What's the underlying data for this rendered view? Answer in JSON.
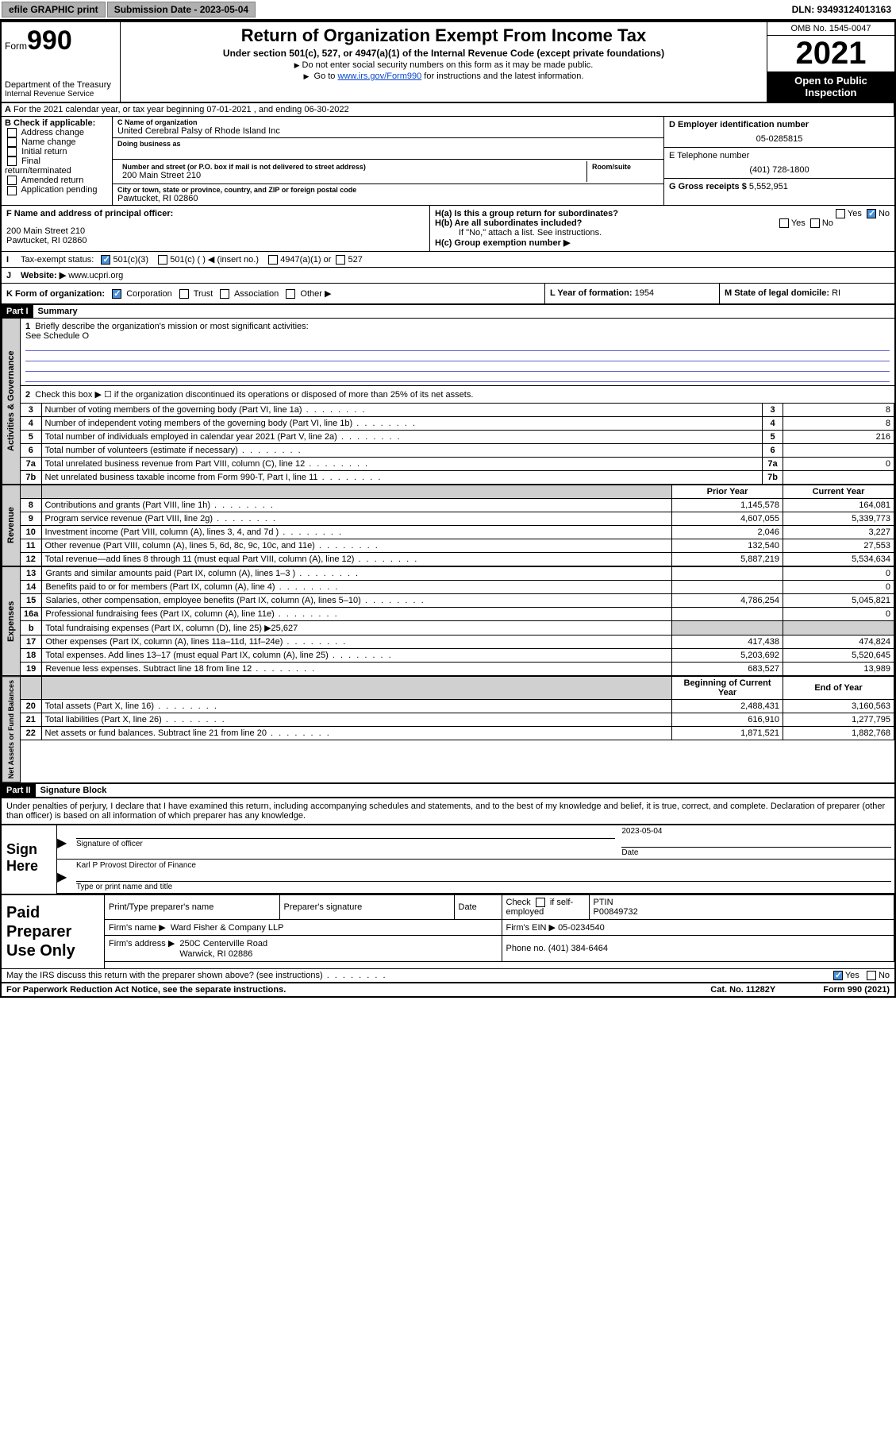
{
  "topbar": {
    "btn_efile": "efile GRAPHIC print",
    "submission_label": "Submission Date - 2023-05-04",
    "dln": "DLN: 93493124013163"
  },
  "header": {
    "form_word": "Form",
    "form_no": "990",
    "dept": "Department of the Treasury",
    "irs": "Internal Revenue Service",
    "title": "Return of Organization Exempt From Income Tax",
    "sub": "Under section 501(c), 527, or 4947(a)(1) of the Internal Revenue Code (except private foundations)",
    "note1": "Do not enter social security numbers on this form as it may be made public.",
    "note2_pre": "Go to ",
    "note2_link": "www.irs.gov/Form990",
    "note2_post": " for instructions and the latest information.",
    "omb": "OMB No. 1545-0047",
    "year": "2021",
    "inspect": "Open to Public Inspection"
  },
  "rowA": "For the 2021 calendar year, or tax year beginning 07-01-2021   , and ending 06-30-2022",
  "colB": {
    "title": "B Check if applicable:",
    "opts": [
      "Address change",
      "Name change",
      "Initial return",
      "Final return/terminated",
      "Amended return",
      "Application pending"
    ]
  },
  "C": {
    "name_lbl": "C Name of organization",
    "name": "United Cerebral Palsy of Rhode Island Inc",
    "dba_lbl": "Doing business as",
    "addr_lbl": "Number and street (or P.O. box if mail is not delivered to street address)",
    "addr": "200 Main Street 210",
    "room_lbl": "Room/suite",
    "city_lbl": "City or town, state or province, country, and ZIP or foreign postal code",
    "city": "Pawtucket, RI  02860"
  },
  "D": {
    "lbl": "D Employer identification number",
    "val": "05-0285815"
  },
  "E": {
    "lbl": "E Telephone number",
    "val": "(401) 728-1800"
  },
  "G": {
    "lbl": "G Gross receipts $",
    "val": "5,552,951"
  },
  "F": {
    "lbl": "F  Name and address of principal officer:",
    "addr1": "200 Main Street 210",
    "addr2": "Pawtucket, RI  02860"
  },
  "H": {
    "a_lbl": "H(a)  Is this a group return for subordinates?",
    "b_lbl": "H(b)  Are all subordinates included?",
    "note": "If \"No,\" attach a list. See instructions.",
    "c_lbl": "H(c)  Group exemption number ▶",
    "yes": "Yes",
    "no": "No"
  },
  "I": {
    "lbl": "Tax-exempt status:",
    "o1": "501(c)(3)",
    "o2": "501(c) (  ) ◀ (insert no.)",
    "o3": "4947(a)(1) or",
    "o4": "527"
  },
  "J": {
    "lbl": "Website: ▶",
    "val": "www.ucpri.org"
  },
  "K": {
    "lbl": "K Form of organization:",
    "o1": "Corporation",
    "o2": "Trust",
    "o3": "Association",
    "o4": "Other ▶"
  },
  "L": {
    "lbl": "L Year of formation:",
    "val": "1954"
  },
  "M": {
    "lbl": "M State of legal domicile:",
    "val": "RI"
  },
  "partI": {
    "hdr": "Part I",
    "title": "Summary"
  },
  "summary1": {
    "lbl": "Briefly describe the organization's mission or most significant activities:",
    "val": "See Schedule O"
  },
  "summary2": "Check this box ▶ ☐  if the organization discontinued its operations or disposed of more than 25% of its net assets.",
  "gov_rows": [
    {
      "n": "3",
      "t": "Number of voting members of the governing body (Part VI, line 1a)",
      "v": "8"
    },
    {
      "n": "4",
      "t": "Number of independent voting members of the governing body (Part VI, line 1b)",
      "v": "8"
    },
    {
      "n": "5",
      "t": "Total number of individuals employed in calendar year 2021 (Part V, line 2a)",
      "v": "216"
    },
    {
      "n": "6",
      "t": "Total number of volunteers (estimate if necessary)",
      "v": ""
    },
    {
      "n": "7a",
      "t": "Total unrelated business revenue from Part VIII, column (C), line 12",
      "v": "0"
    },
    {
      "n": "7b",
      "t": "Net unrelated business taxable income from Form 990-T, Part I, line 11",
      "v": ""
    }
  ],
  "col_hdr": {
    "prior": "Prior Year",
    "current": "Current Year",
    "beg": "Beginning of Current Year",
    "end": "End of Year"
  },
  "rev_rows": [
    {
      "n": "8",
      "t": "Contributions and grants (Part VIII, line 1h)",
      "p": "1,145,578",
      "c": "164,081"
    },
    {
      "n": "9",
      "t": "Program service revenue (Part VIII, line 2g)",
      "p": "4,607,055",
      "c": "5,339,773"
    },
    {
      "n": "10",
      "t": "Investment income (Part VIII, column (A), lines 3, 4, and 7d )",
      "p": "2,046",
      "c": "3,227"
    },
    {
      "n": "11",
      "t": "Other revenue (Part VIII, column (A), lines 5, 6d, 8c, 9c, 10c, and 11e)",
      "p": "132,540",
      "c": "27,553"
    },
    {
      "n": "12",
      "t": "Total revenue—add lines 8 through 11 (must equal Part VIII, column (A), line 12)",
      "p": "5,887,219",
      "c": "5,534,634"
    }
  ],
  "exp_rows": [
    {
      "n": "13",
      "t": "Grants and similar amounts paid (Part IX, column (A), lines 1–3 )",
      "p": "",
      "c": "0"
    },
    {
      "n": "14",
      "t": "Benefits paid to or for members (Part IX, column (A), line 4)",
      "p": "",
      "c": "0"
    },
    {
      "n": "15",
      "t": "Salaries, other compensation, employee benefits (Part IX, column (A), lines 5–10)",
      "p": "4,786,254",
      "c": "5,045,821"
    },
    {
      "n": "16a",
      "t": "Professional fundraising fees (Part IX, column (A), line 11e)",
      "p": "",
      "c": "0"
    }
  ],
  "exp_16b": {
    "n": "b",
    "t": "Total fundraising expenses (Part IX, column (D), line 25) ▶",
    "v": "25,627"
  },
  "exp_rows2": [
    {
      "n": "17",
      "t": "Other expenses (Part IX, column (A), lines 11a–11d, 11f–24e)",
      "p": "417,438",
      "c": "474,824"
    },
    {
      "n": "18",
      "t": "Total expenses. Add lines 13–17 (must equal Part IX, column (A), line 25)",
      "p": "5,203,692",
      "c": "5,520,645"
    },
    {
      "n": "19",
      "t": "Revenue less expenses. Subtract line 18 from line 12",
      "p": "683,527",
      "c": "13,989"
    }
  ],
  "na_rows": [
    {
      "n": "20",
      "t": "Total assets (Part X, line 16)",
      "p": "2,488,431",
      "c": "3,160,563"
    },
    {
      "n": "21",
      "t": "Total liabilities (Part X, line 26)",
      "p": "616,910",
      "c": "1,277,795"
    },
    {
      "n": "22",
      "t": "Net assets or fund balances. Subtract line 21 from line 20",
      "p": "1,871,521",
      "c": "1,882,768"
    }
  ],
  "vtabs": {
    "gov": "Activities & Governance",
    "rev": "Revenue",
    "exp": "Expenses",
    "na": "Net Assets or Fund Balances"
  },
  "partII": {
    "hdr": "Part II",
    "title": "Signature Block",
    "decl": "Under penalties of perjury, I declare that I have examined this return, including accompanying schedules and statements, and to the best of my knowledge and belief, it is true, correct, and complete. Declaration of preparer (other than officer) is based on all information of which preparer has any knowledge."
  },
  "sign": {
    "here": "Sign Here",
    "sig_lbl": "Signature of officer",
    "date_lbl": "Date",
    "date": "2023-05-04",
    "name": "Karl P Provost  Director of Finance",
    "name_lbl": "Type or print name and title"
  },
  "paid": {
    "lbl": "Paid Preparer Use Only",
    "h1": "Print/Type preparer's name",
    "h2": "Preparer's signature",
    "h3": "Date",
    "h4_pre": "Check",
    "h4_post": "if self-employed",
    "ptin_lbl": "PTIN",
    "ptin": "P00849732",
    "firm_name_lbl": "Firm's name    ▶",
    "firm_name": "Ward Fisher & Company LLP",
    "firm_ein_lbl": "Firm's EIN ▶",
    "firm_ein": "05-0234540",
    "firm_addr_lbl": "Firm's address ▶",
    "firm_addr1": "250C Centerville Road",
    "firm_addr2": "Warwick, RI  02886",
    "phone_lbl": "Phone no.",
    "phone": "(401) 384-6464"
  },
  "footer": {
    "discuss": "May the IRS discuss this return with the preparer shown above? (see instructions)",
    "yes": "Yes",
    "no": "No",
    "pra": "For Paperwork Reduction Act Notice, see the separate instructions.",
    "cat": "Cat. No. 11282Y",
    "foot": "Form 990 (2021)"
  },
  "colors": {
    "btn_bg": "#b0b0b0",
    "link": "#0645cc",
    "check": "#4a90d9",
    "gray": "#d0d0d0",
    "rule": "#6060cc"
  }
}
